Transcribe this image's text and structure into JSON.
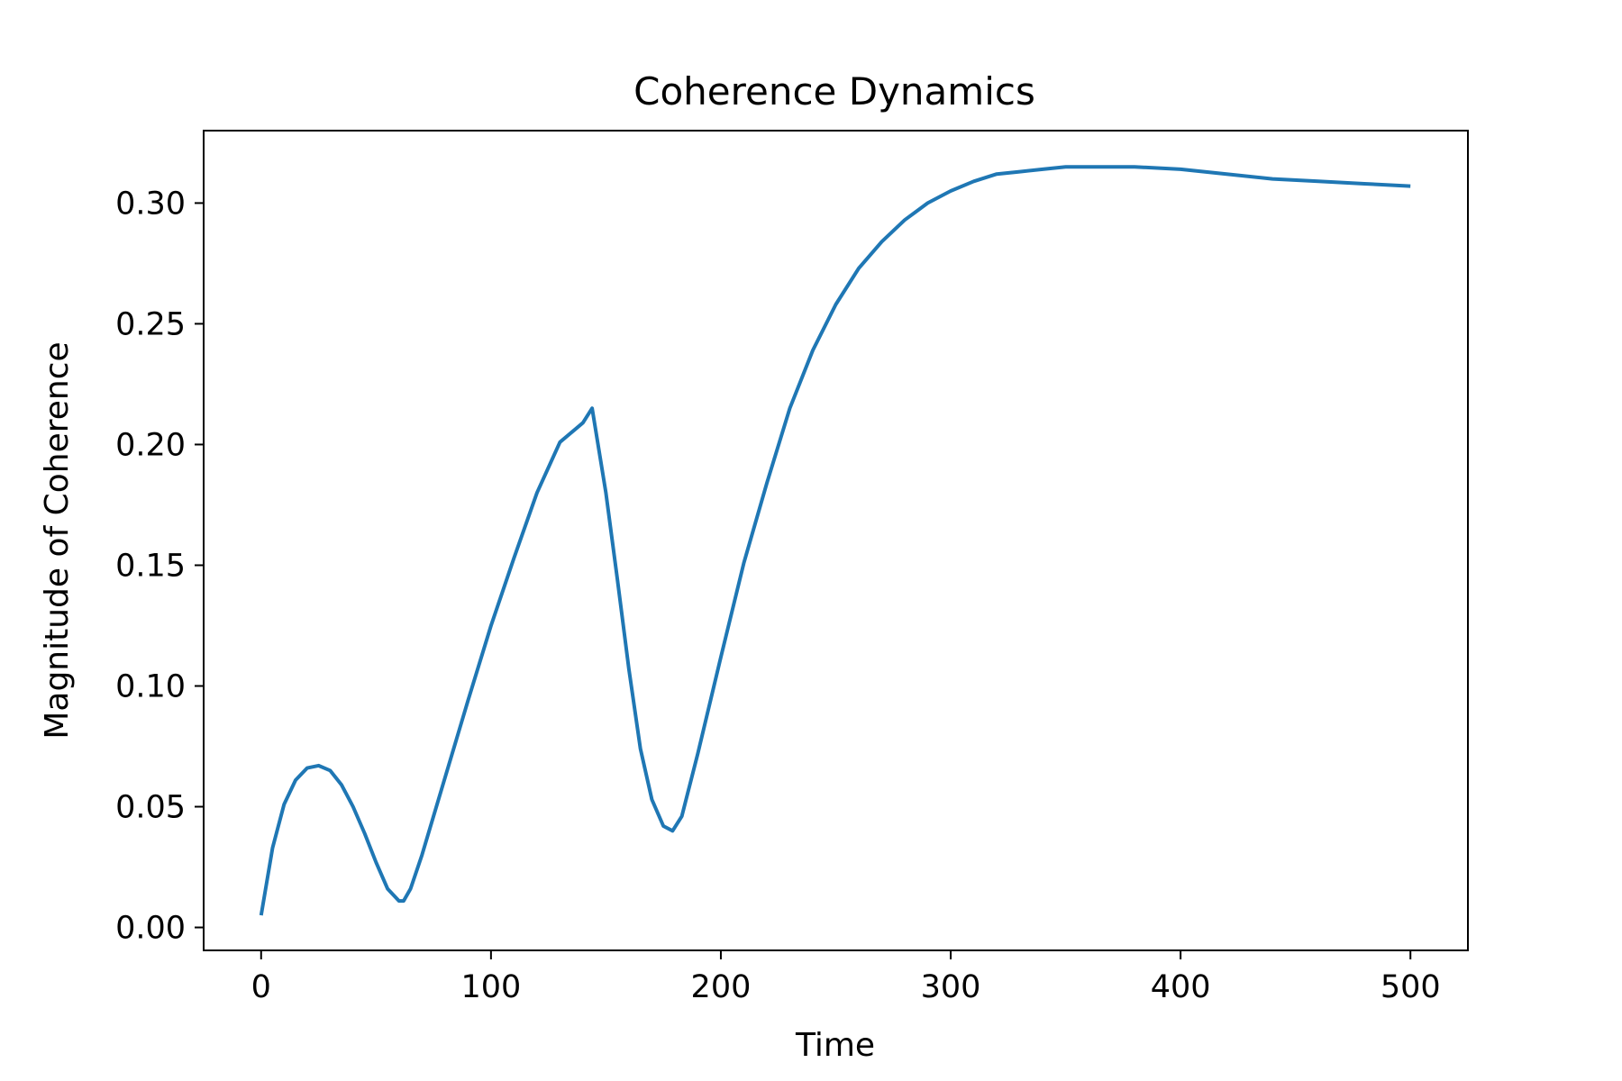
{
  "chart_data": {
    "type": "line",
    "title": "Coherence Dynamics",
    "xlabel": "Time",
    "ylabel": "Magnitude of Coherence",
    "xlim": [
      -25,
      525
    ],
    "ylim": [
      -0.0095,
      0.33
    ],
    "x_ticks": [
      0,
      100,
      200,
      300,
      400,
      500
    ],
    "y_ticks": [
      0.0,
      0.05,
      0.1,
      0.15,
      0.2,
      0.25,
      0.3
    ],
    "x_tick_labels": [
      "0",
      "100",
      "200",
      "300",
      "400",
      "500"
    ],
    "y_tick_labels": [
      "0.00",
      "0.05",
      "0.10",
      "0.15",
      "0.20",
      "0.25",
      "0.30"
    ],
    "grid": false,
    "legend": "none",
    "series": [
      {
        "color": "#1f77b4",
        "x": [
          0,
          5,
          10,
          15,
          20,
          25,
          30,
          35,
          40,
          45,
          50,
          55,
          60,
          62,
          65,
          70,
          80,
          90,
          100,
          110,
          120,
          130,
          140,
          144,
          150,
          155,
          160,
          165,
          170,
          175,
          179,
          183,
          190,
          200,
          210,
          220,
          230,
          240,
          250,
          260,
          270,
          280,
          290,
          300,
          310,
          320,
          330,
          340,
          350,
          360,
          370,
          380,
          400,
          420,
          440,
          460,
          480,
          500
        ],
        "y": [
          0.005,
          0.033,
          0.051,
          0.061,
          0.066,
          0.067,
          0.065,
          0.059,
          0.05,
          0.039,
          0.027,
          0.016,
          0.011,
          0.011,
          0.016,
          0.03,
          0.062,
          0.094,
          0.125,
          0.153,
          0.18,
          0.201,
          0.209,
          0.215,
          0.18,
          0.144,
          0.107,
          0.074,
          0.053,
          0.042,
          0.04,
          0.046,
          0.072,
          0.112,
          0.151,
          0.184,
          0.215,
          0.239,
          0.258,
          0.273,
          0.284,
          0.293,
          0.3,
          0.305,
          0.309,
          0.312,
          0.313,
          0.314,
          0.315,
          0.315,
          0.315,
          0.315,
          0.314,
          0.312,
          0.31,
          0.309,
          0.308,
          0.307
        ]
      }
    ]
  }
}
